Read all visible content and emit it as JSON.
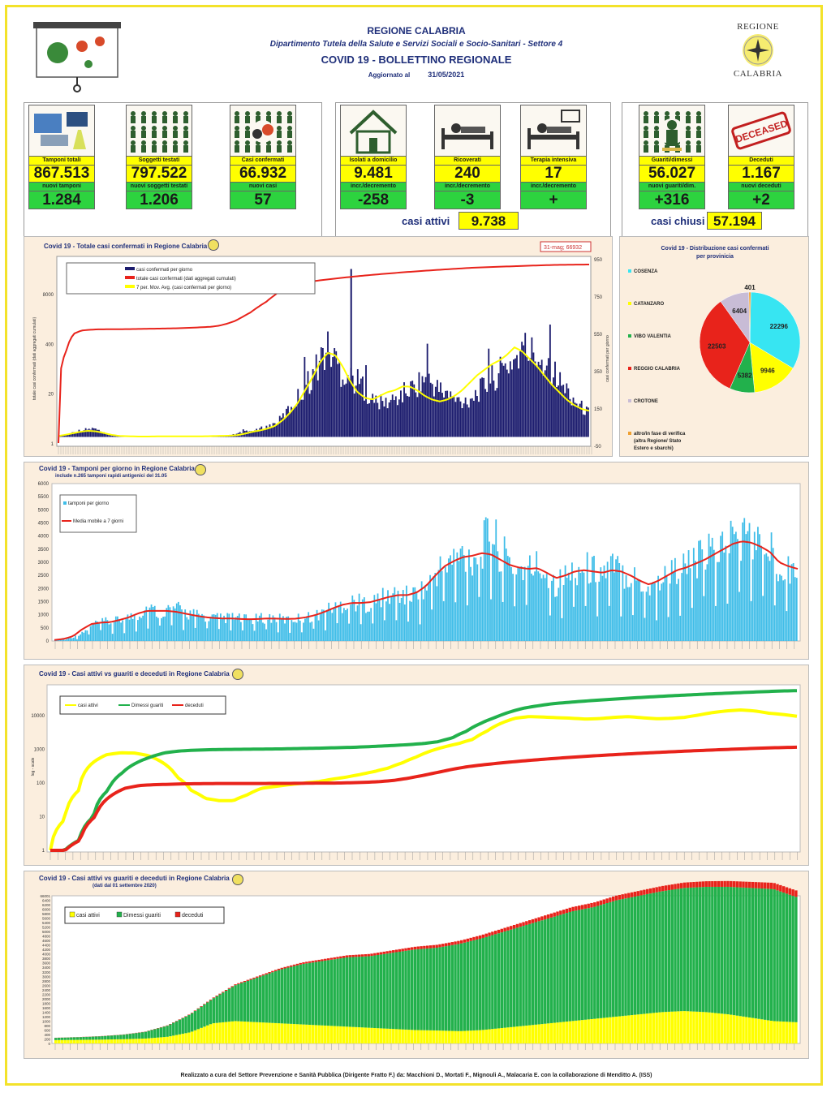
{
  "header": {
    "title": "REGIONE CALABRIA",
    "department": "Dipartimento Tutela della Salute e Servizi Sociali e Socio-Sanitari - Settore 4",
    "bulletin": "COVID 19 - BOLLETTINO REGIONALE",
    "updated_label": "Aggiornato al",
    "updated_date": "31/05/2021",
    "logo_top": "REGIONE",
    "logo_bottom": "CALABRIA"
  },
  "tiles": [
    {
      "label": "Tamponi totali",
      "value": "867.513",
      "label2": "nuovi tamponi",
      "value2": "1.284",
      "icon": "lab-test-icon"
    },
    {
      "label": "Soggetti testati",
      "value": "797.522",
      "label2": "nuovi soggetti testati",
      "value2": "1.206",
      "icon": "people-grid-icon"
    },
    {
      "label": "Casi confermati",
      "value": "66.932",
      "label2": "nuovi casi",
      "value2": "57",
      "icon": "virus-people-icon"
    },
    {
      "label": "Isolati a domicilio",
      "value": "9.481",
      "label2": "incr./decremento",
      "value2": "-258",
      "icon": "house-icon"
    },
    {
      "label": "Ricoverati",
      "value": "240",
      "label2": "incr./decremento",
      "value2": "-3",
      "icon": "hospital-bed-icon"
    },
    {
      "label": "Terapia intensiva",
      "value": "17",
      "label2": "incr./decremento",
      "value2": "+",
      "icon": "icu-bed-icon"
    },
    {
      "label": "Guariti/dimessi",
      "value": "56.027",
      "label2": "nuovi guariti/dim.",
      "value2": "+316",
      "icon": "recovered-icon"
    },
    {
      "label": "Deceduti",
      "value": "1.167",
      "label2": "nuovi deceduti",
      "value2": "+2",
      "icon": "deceased-stamp-icon"
    }
  ],
  "deceased_stamp": "DECEASED",
  "summary": {
    "active_label": "casi attivi",
    "active_value": "9.738",
    "closed_label": "casi chiusi",
    "closed_value": "57.194"
  },
  "colors": {
    "navy": "#1c1c6e",
    "yellow": "#ffff00",
    "red": "#e8231b",
    "green": "#22b14c",
    "cyan": "#37e5f2",
    "sky": "#3fbde8",
    "lilac": "#c8bcd6"
  },
  "footer": "Realizzato a cura del Settore Prevenzione e Sanità Pubblica (Dirigente Fratto F.) da:  Macchioni D., Mortati F., Mignouli A., Malacaria E. con la collaborazione di Menditto A. (ISS)",
  "chart_data": [
    {
      "type": "bar",
      "title": "Covid 19 - Totale casi confermati in Regione Calabria",
      "ylabel": "totale casi confermati (dati aggregati cumulati)",
      "ylabel_right": "casi confermati per giorno",
      "left_ticks": [
        "1",
        "20",
        "400",
        "8000"
      ],
      "right_ticks": [
        "-50",
        "150",
        "350",
        "550",
        "750",
        "950"
      ],
      "annotation": "31-mag; 66932",
      "legend": [
        "casi confermati per giorno",
        "totale casi confermati (dati aggregati cumulati)",
        "7 per. Mov. Avg. (casi confermati per giorno)"
      ],
      "series": [
        {
          "name": "casi confermati per giorno",
          "values": [
            5,
            10,
            25,
            35,
            40,
            45,
            25,
            10,
            5,
            5,
            3,
            2,
            2,
            3,
            3,
            2,
            2,
            3,
            3,
            3,
            4,
            5,
            5,
            6,
            8,
            15,
            25,
            30,
            35,
            50,
            60,
            80,
            120,
            170,
            220,
            280,
            330,
            420,
            470,
            430,
            350,
            330,
            300,
            280,
            200,
            190,
            180,
            190,
            210,
            240,
            260,
            290,
            320,
            280,
            250,
            230,
            200,
            190,
            200,
            230,
            260,
            300,
            330,
            360,
            400,
            430,
            470,
            450,
            430,
            400,
            360,
            290,
            250,
            200,
            160,
            130
          ]
        },
        {
          "name": "totale casi confermati (dati aggregati cumulati)",
          "values": [
            1,
            300,
            900,
            1100,
            1150,
            1180,
            1190,
            1190,
            1195,
            1200,
            1210,
            1220,
            1230,
            1240,
            1250,
            1260,
            1280,
            1300,
            1330,
            1360,
            1400,
            1500,
            1700,
            2000,
            2600,
            3400,
            4800,
            6500,
            9500,
            13500,
            17000,
            20000,
            22000,
            23500,
            25000,
            26500,
            28000,
            29500,
            31000,
            32500,
            34000,
            35500,
            37000,
            38500,
            40000,
            41500,
            43000,
            44500,
            46000,
            47500,
            49000,
            50500,
            52000,
            53500,
            55000,
            56000,
            57000,
            58000,
            59000,
            60000,
            61000,
            62000,
            63000,
            64000,
            64800,
            65500,
            66000,
            66400,
            66700,
            66932
          ]
        },
        {
          "name": "7 per. Mov. Avg. (casi confermati per giorno)",
          "values": [
            5,
            12,
            20,
            28,
            33,
            30,
            22,
            12,
            6,
            4,
            3,
            2,
            2,
            3,
            3,
            3,
            3,
            3,
            3,
            3,
            4,
            5,
            6,
            7,
            10,
            18,
            28,
            35,
            45,
            60,
            90,
            130,
            180,
            250,
            320,
            400,
            450,
            440,
            380,
            300,
            240,
            210,
            200,
            220,
            240,
            250,
            270,
            270,
            250,
            220,
            200,
            190,
            200,
            220,
            250,
            290,
            330,
            360,
            390,
            410,
            440,
            480,
            460,
            420,
            380,
            330,
            280,
            240,
            200,
            170,
            150,
            140
          ]
        }
      ]
    },
    {
      "type": "pie",
      "title": "Covid 19 - Distribuzione casi confermati per provinicia",
      "categories": [
        "COSENZA",
        "CATANZARO",
        "VIBO VALENTIA",
        "REGGIO CALABRIA",
        "CROTONE",
        "altro/in fase di verifica (altra Regione/ Stato Estero e sbarchi)"
      ],
      "values": [
        22296,
        9946,
        5382,
        22503,
        6404,
        401
      ]
    },
    {
      "type": "bar",
      "title": "Covid 19 - Tamponi per giorno in Regione Calabria",
      "subtitle": "include n.265 tamponi rapidi antigenici del 31.05",
      "y_ticks": [
        "0",
        "500",
        "1000",
        "1500",
        "2000",
        "2500",
        "3000",
        "3500",
        "4000",
        "4500",
        "5000",
        "5500",
        "6000"
      ],
      "ylim": [
        0,
        6000
      ],
      "legend": [
        "tamponi per giorno",
        "Media mobile a 7 giorni"
      ],
      "series": [
        {
          "name": "tamponi per giorno",
          "values": [
            50,
            80,
            150,
            300,
            600,
            750,
            700,
            800,
            900,
            1000,
            1300,
            1100,
            1200,
            1250,
            1100,
            1000,
            950,
            900,
            850,
            900,
            850,
            800,
            850,
            900,
            850,
            800,
            850,
            900,
            950,
            1100,
            1300,
            1400,
            1500,
            1450,
            1400,
            1600,
            1700,
            1800,
            1700,
            1800,
            2000,
            2600,
            2900,
            3100,
            3300,
            3200,
            3500,
            4200,
            3400,
            3000,
            2800,
            2700,
            2900,
            2600,
            2200,
            2400,
            2700,
            2800,
            2700,
            2600,
            2800,
            2700,
            2500,
            2300,
            2000,
            2200,
            2500,
            2700,
            2800,
            3000,
            3200,
            3400,
            3600,
            3900,
            4000,
            3900,
            3600,
            3500,
            3000,
            2900,
            2700
          ]
        },
        {
          "name": "Media mobile a 7 giorni",
          "values": [
            40,
            80,
            180,
            450,
            650,
            700,
            720,
            800,
            900,
            1050,
            1150,
            1150,
            1150,
            1120,
            1050,
            980,
            920,
            880,
            860,
            860,
            840,
            830,
            840,
            860,
            850,
            840,
            850,
            900,
            980,
            1100,
            1250,
            1380,
            1450,
            1450,
            1480,
            1580,
            1680,
            1750,
            1750,
            1850,
            2100,
            2500,
            2850,
            3050,
            3200,
            3250,
            3350,
            3300,
            3100,
            2900,
            2800,
            2750,
            2780,
            2600,
            2400,
            2500,
            2650,
            2700,
            2650,
            2600,
            2700,
            2650,
            2500,
            2300,
            2150,
            2300,
            2500,
            2700,
            2800,
            2950,
            3100,
            3300,
            3500,
            3700,
            3800,
            3750,
            3600,
            3400,
            3000,
            2850,
            2750
          ]
        }
      ]
    },
    {
      "type": "line",
      "title": "Covid 19 - Casi attivi vs guariti e deceduti in Regione Calabria",
      "ylabel": "log - scale",
      "y_scale": "log",
      "y_ticks": [
        "1",
        "10",
        "100",
        "1000",
        "10000"
      ],
      "legend": [
        "casi attivi",
        "Dimessi guariti",
        "deceduti"
      ],
      "series": [
        {
          "name": "casi attivi",
          "values": [
            1,
            8,
            60,
            400,
            700,
            800,
            780,
            650,
            400,
            150,
            60,
            35,
            30,
            30,
            45,
            70,
            80,
            90,
            100,
            110,
            130,
            150,
            180,
            220,
            280,
            400,
            600,
            900,
            1200,
            1500,
            2000,
            3500,
            6000,
            8500,
            9500,
            9200,
            8800,
            8500,
            8000,
            8300,
            9000,
            9500,
            8800,
            8200,
            8400,
            9000,
            10500,
            12500,
            14000,
            15000,
            14000,
            12000,
            11000,
            9738
          ]
        },
        {
          "name": "Dimessi guariti",
          "values": [
            1,
            1,
            2,
            10,
            60,
            200,
            400,
            600,
            800,
            900,
            950,
            980,
            1000,
            1010,
            1020,
            1030,
            1040,
            1060,
            1080,
            1100,
            1130,
            1160,
            1200,
            1260,
            1320,
            1400,
            1500,
            1700,
            2200,
            3500,
            6000,
            9000,
            13000,
            17000,
            20000,
            23000,
            25000,
            27000,
            29000,
            31000,
            33000,
            35000,
            37000,
            39000,
            41000,
            43000,
            45000,
            47000,
            49000,
            51000,
            53000,
            55000,
            56027
          ]
        },
        {
          "name": "deceduti",
          "values": [
            1,
            1,
            2,
            10,
            40,
            70,
            85,
            90,
            92,
            95,
            96,
            97,
            97,
            97,
            97,
            98,
            98,
            99,
            100,
            100,
            102,
            105,
            110,
            120,
            140,
            170,
            210,
            260,
            310,
            350,
            390,
            430,
            470,
            510,
            550,
            590,
            630,
            670,
            710,
            750,
            790,
            830,
            870,
            910,
            950,
            990,
            1030,
            1070,
            1110,
            1140,
            1167
          ]
        }
      ]
    },
    {
      "type": "area",
      "title": "Covid 19 - Casi attivi vs guariti e deceduti in Regione Calabria",
      "subtitle": "(dati dal 01 settembre 2020)",
      "y_ticks": [
        "0",
        "200",
        "400",
        "600",
        "800",
        "1000",
        "1200",
        "1400",
        "1600",
        "1800",
        "2000",
        "2200",
        "2400",
        "2600",
        "2800",
        "3000",
        "3200",
        "3400",
        "3600",
        "3800",
        "4000",
        "4200",
        "4400",
        "4600",
        "4800",
        "5000",
        "5200",
        "5400",
        "5600",
        "5800",
        "6000",
        "6200",
        "6400",
        "66001"
      ],
      "legend": [
        "casi attivi",
        "Dimessi guariti",
        "deceduti"
      ],
      "series": [
        {
          "name": "casi attivi",
          "values": [
            150,
            160,
            170,
            190,
            220,
            300,
            500,
            900,
            1000,
            950,
            900,
            850,
            800,
            750,
            700,
            650,
            600,
            580,
            550,
            600,
            700,
            800,
            900,
            1000,
            1100,
            1200,
            1300,
            1400,
            1450,
            1400,
            1300,
            1150,
            1000,
            950
          ]
        },
        {
          "name": "Dimessi guariti",
          "values": [
            100,
            120,
            150,
            200,
            300,
            500,
            800,
            1100,
            1600,
            2000,
            2400,
            2700,
            2900,
            3100,
            3200,
            3400,
            3600,
            3700,
            3900,
            4100,
            4300,
            4500,
            4700,
            4900,
            5000,
            5200,
            5300,
            5400,
            5500,
            5600,
            5700,
            5800,
            5900,
            5600
          ]
        },
        {
          "name": "deceduti",
          "values": [
            5,
            6,
            7,
            8,
            10,
            15,
            20,
            30,
            40,
            50,
            60,
            70,
            80,
            90,
            100,
            110,
            120,
            130,
            140,
            150,
            160,
            170,
            180,
            190,
            200,
            210,
            220,
            230,
            240,
            250,
            260,
            270,
            280,
            290
          ]
        }
      ]
    }
  ]
}
